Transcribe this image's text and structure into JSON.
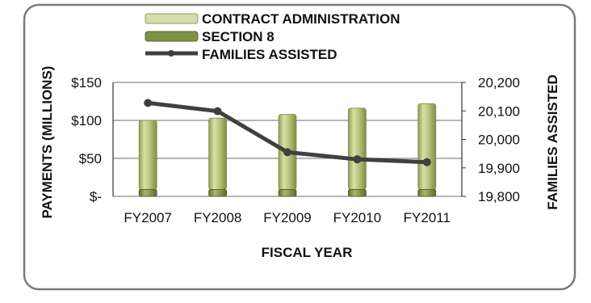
{
  "chart_data": {
    "type": "bar",
    "categories": [
      "FY2007",
      "FY2008",
      "FY2009",
      "FY2010",
      "FY2011"
    ],
    "series": [
      {
        "name": "CONTRACT ADMINISTRATION",
        "kind": "bar-stacked",
        "axis": "left",
        "values": [
          91,
          94,
          99,
          107,
          113
        ]
      },
      {
        "name": "SECTION 8",
        "kind": "bar-stacked",
        "axis": "left",
        "values": [
          9,
          9,
          9,
          9,
          9
        ]
      },
      {
        "name": "FAMILIES ASSISTED",
        "kind": "line",
        "axis": "right",
        "values": [
          20128,
          20099,
          19955,
          19930,
          19920
        ]
      }
    ],
    "xlabel": "FISCAL YEAR",
    "ylabel": "PAYMENTS (MILLIONS)",
    "y2label": "FAMILIES ASSISTED",
    "ylim": [
      0,
      150
    ],
    "y2lim": [
      19800,
      20200
    ],
    "yticks": [
      "$-",
      "$50",
      "$100",
      "$150"
    ],
    "y2ticks": [
      "19,800",
      "19,900",
      "20,000",
      "20,100",
      "20,200"
    ],
    "legend_position": "top",
    "grid": true,
    "colors": {
      "contract_administration": "#b9c77a",
      "section_8": "#7f9146",
      "families_assisted": "#404040",
      "plot_bg": "#ffffff",
      "grid": "#8a8a8a"
    }
  }
}
